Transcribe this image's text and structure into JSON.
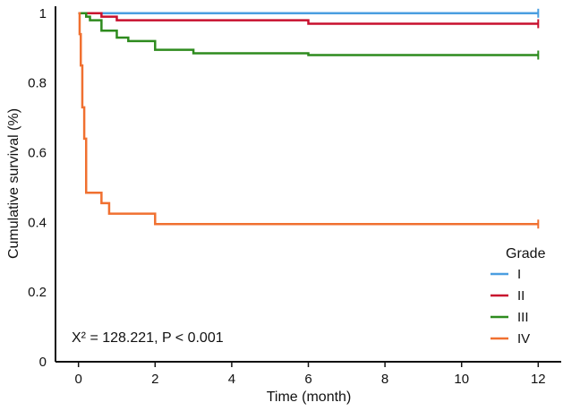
{
  "chart_data": {
    "type": "line",
    "title": "",
    "xlabel": "Time (month)",
    "ylabel": "Cumulative survival (%)",
    "xlim": [
      -0.6,
      12.6
    ],
    "ylim": [
      0,
      1.02
    ],
    "xticks": [
      0,
      2,
      4,
      6,
      8,
      10,
      12
    ],
    "yticks": [
      0,
      0.2,
      0.4,
      0.6,
      0.8,
      1
    ],
    "ytick_labels": [
      "0",
      "0.2",
      "0.4",
      "0.6",
      "0.8",
      "1"
    ],
    "grid": false,
    "legend": {
      "title": "Grade",
      "placement": "bottom-right"
    },
    "annotation": "X² = 128.221, P < 0.001",
    "series": [
      {
        "name": "I",
        "color": "#4a9ee0",
        "x": [
          0,
          12
        ],
        "y": [
          1.0,
          1.0
        ]
      },
      {
        "name": "II",
        "color": "#c8102e",
        "x": [
          0,
          0.2,
          0.6,
          1.0,
          6.0,
          12
        ],
        "y": [
          1.0,
          1.0,
          0.99,
          0.98,
          0.97,
          0.97
        ]
      },
      {
        "name": "III",
        "color": "#2e8b1e",
        "x": [
          0,
          0.2,
          0.3,
          0.6,
          1.0,
          1.3,
          2.0,
          3.0,
          6.0,
          12
        ],
        "y": [
          1.0,
          0.99,
          0.98,
          0.95,
          0.93,
          0.92,
          0.895,
          0.885,
          0.88,
          0.88
        ]
      },
      {
        "name": "IV",
        "color": "#f07030",
        "x": [
          0,
          0.03,
          0.06,
          0.1,
          0.15,
          0.2,
          0.6,
          0.8,
          2.0,
          12
        ],
        "y": [
          1.0,
          0.94,
          0.85,
          0.73,
          0.64,
          0.485,
          0.455,
          0.425,
          0.395,
          0.395
        ]
      }
    ]
  }
}
